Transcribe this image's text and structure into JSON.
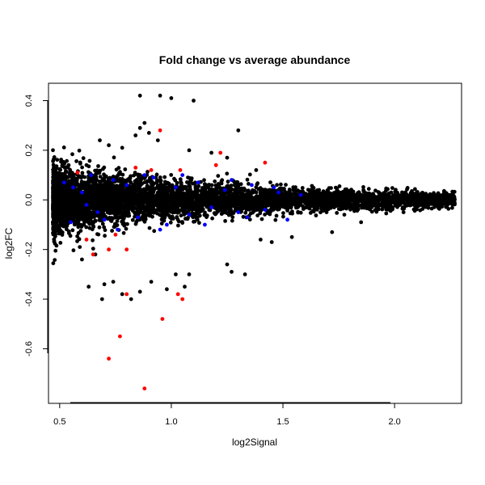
{
  "chart_data": {
    "type": "scatter",
    "title": "Fold change vs average abundance",
    "xlabel": "log2Signal",
    "ylabel": "log2FC",
    "xlim": [
      0.45,
      2.3
    ],
    "ylim": [
      -0.82,
      0.47
    ],
    "x_ticks": [
      0.5,
      1.0,
      1.5,
      2.0
    ],
    "x_tick_labels": [
      "0.5",
      "1.0",
      "1.5",
      "2.0"
    ],
    "y_ticks": [
      0.4,
      0.2,
      0.0,
      -0.2,
      -0.4,
      -0.6
    ],
    "y_tick_labels": [
      "0.4",
      "0.2",
      "0.0",
      "-0.2",
      "-0.4",
      "-0.6"
    ],
    "grid": false,
    "legend": "none",
    "colors": {
      "default": "#000000",
      "blue": "#0000ff",
      "red": "#ff0000"
    },
    "series": [
      {
        "color": "#000000",
        "points": [
          [
            0.86,
            0.42
          ],
          [
            0.95,
            0.42
          ],
          [
            1.0,
            0.41
          ],
          [
            1.1,
            0.4
          ],
          [
            0.88,
            0.31
          ],
          [
            0.86,
            0.29
          ],
          [
            0.9,
            0.27
          ],
          [
            0.84,
            0.26
          ],
          [
            0.94,
            0.24
          ],
          [
            0.68,
            0.24
          ],
          [
            0.72,
            0.22
          ],
          [
            0.78,
            0.21
          ],
          [
            1.08,
            0.2
          ],
          [
            1.18,
            0.19
          ],
          [
            1.3,
            0.28
          ],
          [
            1.25,
            0.17
          ],
          [
            0.62,
            0.14
          ],
          [
            1.38,
            0.12
          ],
          [
            0.7,
            -0.34
          ],
          [
            0.74,
            -0.33
          ],
          [
            0.63,
            -0.35
          ],
          [
            0.82,
            -0.4
          ],
          [
            0.86,
            -0.37
          ],
          [
            0.69,
            -0.4
          ],
          [
            0.78,
            -0.38
          ],
          [
            0.98,
            -0.36
          ],
          [
            1.06,
            -0.35
          ],
          [
            1.08,
            -0.3
          ],
          [
            1.27,
            -0.29
          ],
          [
            1.33,
            -0.3
          ],
          [
            1.25,
            -0.26
          ],
          [
            1.02,
            -0.3
          ],
          [
            0.91,
            -0.33
          ],
          [
            0.6,
            -0.24
          ],
          [
            0.66,
            -0.22
          ],
          [
            0.59,
            -0.19
          ],
          [
            1.4,
            -0.16
          ],
          [
            1.45,
            -0.17
          ],
          [
            1.54,
            -0.15
          ],
          [
            1.72,
            -0.13
          ],
          [
            1.85,
            -0.09
          ],
          [
            2.04,
            -0.05
          ],
          [
            2.18,
            -0.02
          ],
          [
            2.26,
            -0.02
          ],
          [
            2.22,
            0.02
          ],
          [
            2.1,
            0.03
          ]
        ]
      },
      {
        "color": "#0000ff",
        "points": [
          [
            0.52,
            0.07
          ],
          [
            0.56,
            0.05
          ],
          [
            0.6,
            0.03
          ],
          [
            0.62,
            -0.02
          ],
          [
            0.67,
            -0.05
          ],
          [
            0.74,
            0.08
          ],
          [
            0.8,
            0.06
          ],
          [
            0.85,
            -0.07
          ],
          [
            0.92,
            0.09
          ],
          [
            0.98,
            -0.1
          ],
          [
            1.02,
            0.05
          ],
          [
            1.08,
            -0.06
          ],
          [
            1.12,
            0.07
          ],
          [
            1.18,
            -0.03
          ],
          [
            1.24,
            0.04
          ],
          [
            1.3,
            -0.05
          ],
          [
            1.36,
            0.06
          ],
          [
            1.42,
            -0.04
          ],
          [
            1.48,
            0.03
          ],
          [
            1.52,
            -0.08
          ],
          [
            1.58,
            0.02
          ],
          [
            0.55,
            -0.09
          ],
          [
            0.64,
            0.1
          ],
          [
            0.7,
            -0.08
          ],
          [
            0.76,
            -0.12
          ],
          [
            0.88,
            0.1
          ],
          [
            0.95,
            -0.12
          ],
          [
            1.05,
            0.1
          ],
          [
            1.15,
            -0.1
          ],
          [
            1.27,
            0.08
          ],
          [
            1.34,
            -0.07
          ],
          [
            1.46,
            0.05
          ]
        ]
      },
      {
        "color": "#ff0000",
        "points": [
          [
            0.88,
            -0.76
          ],
          [
            0.72,
            -0.64
          ],
          [
            0.77,
            -0.55
          ],
          [
            0.96,
            -0.48
          ],
          [
            1.05,
            -0.4
          ],
          [
            1.03,
            -0.38
          ],
          [
            0.8,
            -0.38
          ],
          [
            0.8,
            -0.2
          ],
          [
            0.72,
            -0.2
          ],
          [
            0.65,
            -0.22
          ],
          [
            0.62,
            -0.16
          ],
          [
            0.75,
            -0.14
          ],
          [
            0.95,
            0.28
          ],
          [
            1.22,
            0.19
          ],
          [
            1.42,
            0.15
          ],
          [
            0.58,
            0.11
          ],
          [
            1.04,
            0.12
          ],
          [
            0.91,
            0.12
          ],
          [
            0.84,
            0.13
          ],
          [
            1.2,
            0.14
          ]
        ]
      }
    ]
  }
}
